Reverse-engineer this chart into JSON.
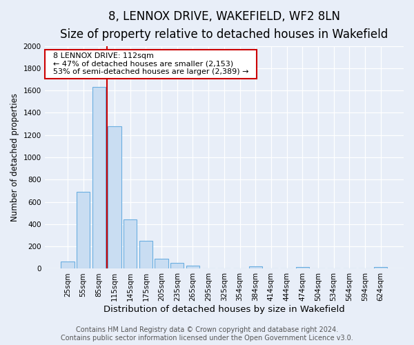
{
  "title": "8, LENNOX DRIVE, WAKEFIELD, WF2 8LN",
  "subtitle": "Size of property relative to detached houses in Wakefield",
  "xlabel": "Distribution of detached houses by size in Wakefield",
  "ylabel": "Number of detached properties",
  "bar_labels": [
    "25sqm",
    "55sqm",
    "85sqm",
    "115sqm",
    "145sqm",
    "175sqm",
    "205sqm",
    "235sqm",
    "265sqm",
    "295sqm",
    "325sqm",
    "354sqm",
    "384sqm",
    "414sqm",
    "444sqm",
    "474sqm",
    "504sqm",
    "534sqm",
    "564sqm",
    "594sqm",
    "624sqm"
  ],
  "bar_values": [
    65,
    690,
    1630,
    1280,
    440,
    250,
    90,
    50,
    30,
    0,
    0,
    0,
    20,
    0,
    0,
    15,
    0,
    0,
    0,
    0,
    15
  ],
  "bar_color": "#c9ddf2",
  "bar_edge_color": "#6aaee0",
  "ylim": [
    0,
    2000
  ],
  "yticks": [
    0,
    200,
    400,
    600,
    800,
    1000,
    1200,
    1400,
    1600,
    1800,
    2000
  ],
  "vline_color": "#cc0000",
  "annotation_line1": "8 LENNOX DRIVE: 112sqm",
  "annotation_line2": "← 47% of detached houses are smaller (2,153)",
  "annotation_line3": "53% of semi-detached houses are larger (2,389) →",
  "annotation_box_color": "#ffffff",
  "annotation_box_edge": "#cc0000",
  "footer_line1": "Contains HM Land Registry data © Crown copyright and database right 2024.",
  "footer_line2": "Contains public sector information licensed under the Open Government Licence v3.0.",
  "background_color": "#e8eef8",
  "plot_background": "#e8eef8",
  "title_fontsize": 12,
  "subtitle_fontsize": 10,
  "xlabel_fontsize": 9.5,
  "ylabel_fontsize": 8.5,
  "footer_fontsize": 7,
  "tick_fontsize": 7.5,
  "annot_fontsize": 8
}
